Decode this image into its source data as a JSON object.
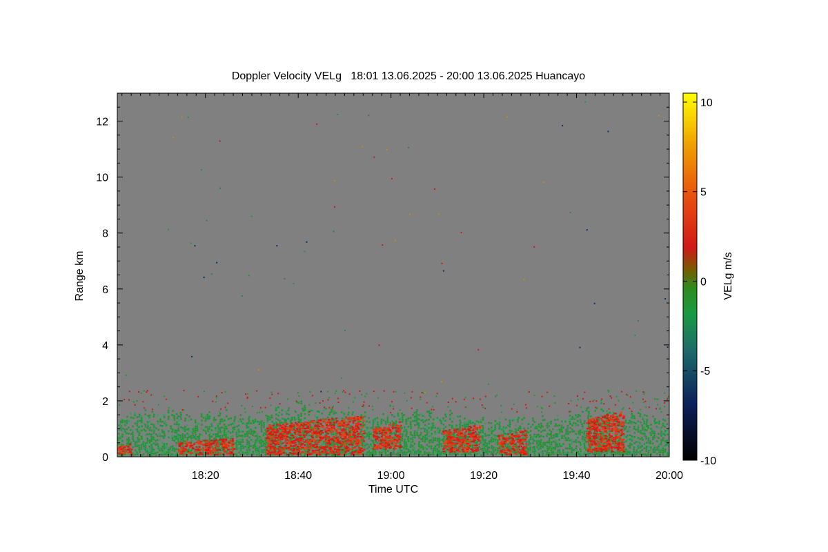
{
  "chart_data": {
    "type": "heatmap",
    "title": "Doppler Velocity VELg   18:01 13.06.2025 - 20:00 13.06.2025 Huancayo",
    "xlabel": "Time UTC",
    "ylabel": "Range km",
    "colorbar_label": "VELg m/s",
    "x_range_minutes_utc": [
      1081,
      1200
    ],
    "x_ticks": [
      {
        "minutes": 1100,
        "label": "18:20"
      },
      {
        "minutes": 1120,
        "label": "18:40"
      },
      {
        "minutes": 1140,
        "label": "19:00"
      },
      {
        "minutes": 1160,
        "label": "19:20"
      },
      {
        "minutes": 1180,
        "label": "19:40"
      },
      {
        "minutes": 1200,
        "label": "20:00"
      }
    ],
    "ylim": [
      0,
      13
    ],
    "y_ticks": [
      0,
      2,
      4,
      6,
      8,
      10,
      12
    ],
    "clim": [
      -10,
      10.5
    ],
    "colorbar_ticks": [
      -10,
      -5,
      0,
      5,
      10
    ],
    "background_color": "#808080",
    "echo_profile": [
      {
        "time": "18:01",
        "top_km": 1.3
      },
      {
        "time": "18:05",
        "top_km": 1.6
      },
      {
        "time": "18:10",
        "top_km": 1.6
      },
      {
        "time": "18:15",
        "top_km": 1.5
      },
      {
        "time": "18:20",
        "top_km": 1.6
      },
      {
        "time": "18:25",
        "top_km": 1.6
      },
      {
        "time": "18:30",
        "top_km": 1.5
      },
      {
        "time": "18:35",
        "top_km": 1.7
      },
      {
        "time": "18:40",
        "top_km": 1.9
      },
      {
        "time": "18:45",
        "top_km": 1.7
      },
      {
        "time": "18:50",
        "top_km": 1.6
      },
      {
        "time": "18:55",
        "top_km": 1.5
      },
      {
        "time": "19:00",
        "top_km": 1.4
      },
      {
        "time": "19:05",
        "top_km": 1.7
      },
      {
        "time": "19:10",
        "top_km": 1.6
      },
      {
        "time": "19:15",
        "top_km": 1.5
      },
      {
        "time": "19:20",
        "top_km": 1.3
      },
      {
        "time": "19:25",
        "top_km": 1.4
      },
      {
        "time": "19:30",
        "top_km": 1.3
      },
      {
        "time": "19:35",
        "top_km": 1.4
      },
      {
        "time": "19:40",
        "top_km": 1.6
      },
      {
        "time": "19:45",
        "top_km": 1.9
      },
      {
        "time": "19:50",
        "top_km": 1.6
      },
      {
        "time": "19:55",
        "top_km": 1.5
      },
      {
        "time": "20:00",
        "top_km": 1.4
      }
    ],
    "updraft_regions": [
      {
        "start": "18:01",
        "end": "18:04",
        "base_km": 0.1,
        "top_km": 0.5,
        "velocity_ms": 2
      },
      {
        "start": "18:14",
        "end": "18:26",
        "base_km": 0.1,
        "top_km": 0.7,
        "velocity_ms": 2
      },
      {
        "start": "18:33",
        "end": "18:54",
        "base_km": 0.1,
        "top_km": 1.5,
        "velocity_ms": 2.5
      },
      {
        "start": "18:56",
        "end": "19:02",
        "base_km": 0.3,
        "top_km": 1.3,
        "velocity_ms": 2
      },
      {
        "start": "19:11",
        "end": "19:19",
        "base_km": 0.2,
        "top_km": 1.2,
        "velocity_ms": 2
      },
      {
        "start": "19:23",
        "end": "19:29",
        "base_km": 0.1,
        "top_km": 1.0,
        "velocity_ms": 2
      },
      {
        "start": "19:42",
        "end": "19:50",
        "base_km": 0.2,
        "top_km": 1.7,
        "velocity_ms": 2.5
      }
    ]
  }
}
